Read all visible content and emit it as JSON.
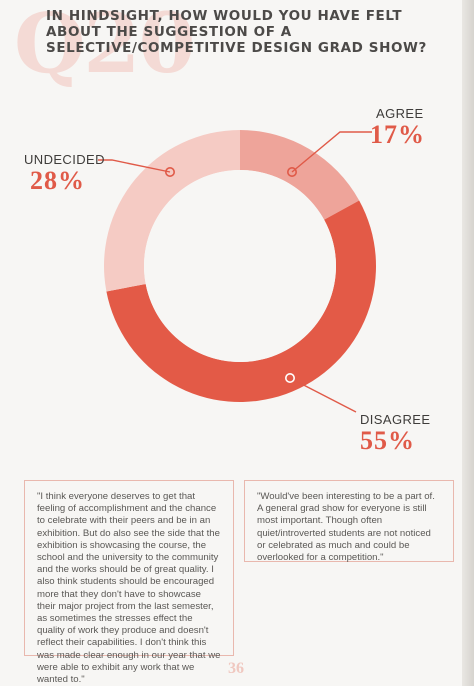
{
  "question": {
    "number": "Q20",
    "text": "IN HINDSIGHT, HOW WOULD YOU HAVE FELT ABOUT THE SUGGESTION OF A SELECTIVE/COMPETITIVE DESIGN GRAD SHOW?"
  },
  "chart_data": {
    "type": "pie",
    "variant": "donut",
    "categories": [
      "AGREE",
      "DISAGREE",
      "UNDECIDED"
    ],
    "values": [
      17,
      55,
      28
    ],
    "value_labels": [
      "17%",
      "55%",
      "28%"
    ],
    "colors": [
      "#eea49a",
      "#e35a47",
      "#f5cbc4"
    ]
  },
  "quotes": [
    "\"I think everyone deserves to get that feeling of accomplishment and the chance to celebrate with their peers and be in an exhibition. But do also see the side that the exhibition is showcasing the course, the school and the university to the community and the works should be of great quality. I also think students should be encouraged more that they don't have to showcase their major project from the last semester, as sometimes the stresses effect the quality of work they produce and doesn't reflect their capabilities. I don't think this was made clear enough in our year that we were able to exhibit any work that we wanted to.\"",
    "\"Would've been interesting to be a part of. A general grad show for everyone is still most important. Though often quiet/introverted students are not noticed or celebrated as much and could be overlooked for a competition.\""
  ],
  "page_number": "36"
}
